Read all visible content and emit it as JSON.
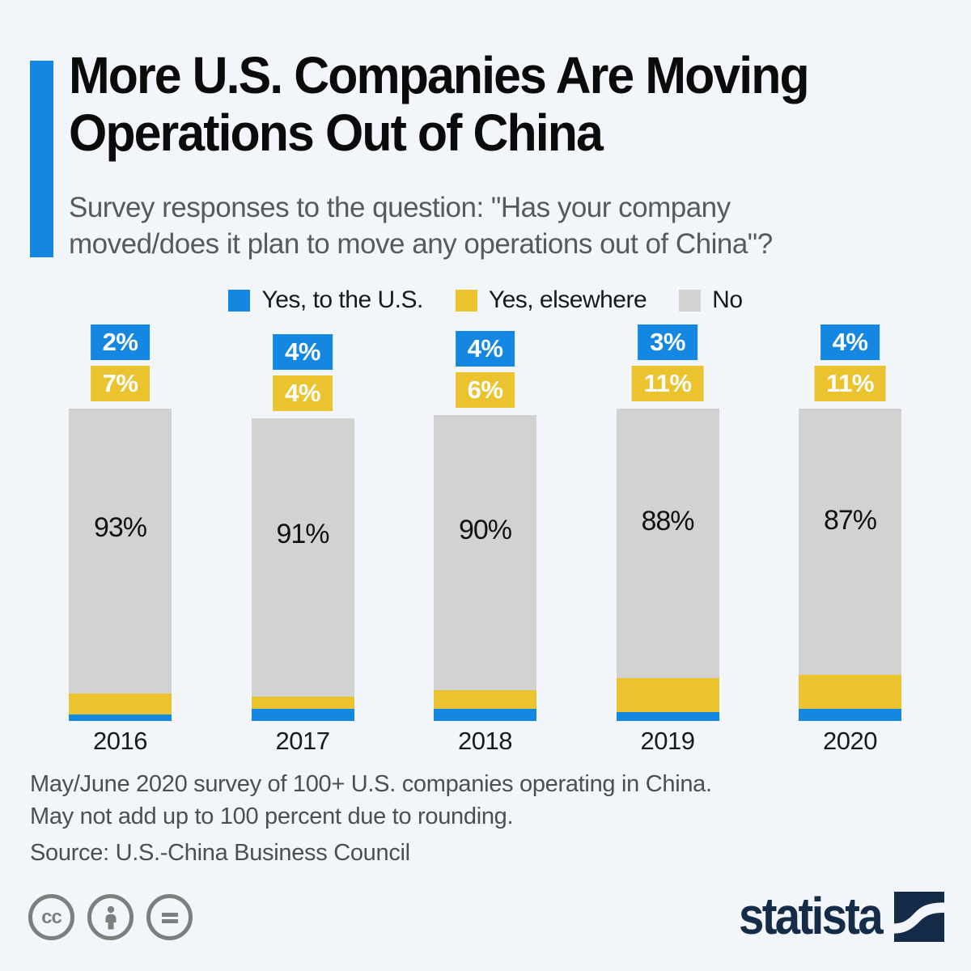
{
  "header": {
    "title_line1": "More U.S. Companies Are Moving",
    "title_line2": "Operations Out of China",
    "subtitle_line1": "Survey responses to the question: \"Has your company",
    "subtitle_line2": "moved/does it plan to move any operations out of China\"?"
  },
  "chart_data": {
    "type": "bar",
    "stacked": true,
    "categories": [
      "2016",
      "2017",
      "2018",
      "2019",
      "2020"
    ],
    "series": [
      {
        "name": "Yes, to the U.S.",
        "color": "#1487e3",
        "values": [
          2,
          4,
          4,
          3,
          4
        ]
      },
      {
        "name": "Yes, elsewhere",
        "color": "#eac32e",
        "values": [
          7,
          4,
          6,
          11,
          11
        ]
      },
      {
        "name": "No",
        "color": "#d2d2d2",
        "values": [
          93,
          91,
          90,
          88,
          87
        ]
      }
    ],
    "value_suffix": "%",
    "ylim": [
      0,
      102
    ],
    "grid": false,
    "legend_position": "top",
    "value_labels": "blue and yellow shown in colored boxes above bars, gray shown inside bar"
  },
  "footer": {
    "note_line1": "May/June 2020 survey of 100+ U.S. companies operating in China.",
    "note_line2": "May not add up to 100 percent due to rounding.",
    "source": "Source: U.S.-China Business Council"
  },
  "branding": {
    "logo_text": "statista",
    "license_icons": [
      "cc-icon",
      "attribution-person-icon",
      "no-derivatives-equals-icon"
    ]
  },
  "colors": {
    "accent_blue": "#1487e3",
    "yellow": "#eac32e",
    "gray": "#d2d2d2",
    "background": "#f2f6fa",
    "logo_navy": "#152c48",
    "subtitle_gray": "#57595b",
    "footnote_gray": "#4c4f52",
    "cc_gray": "#7b807e"
  }
}
